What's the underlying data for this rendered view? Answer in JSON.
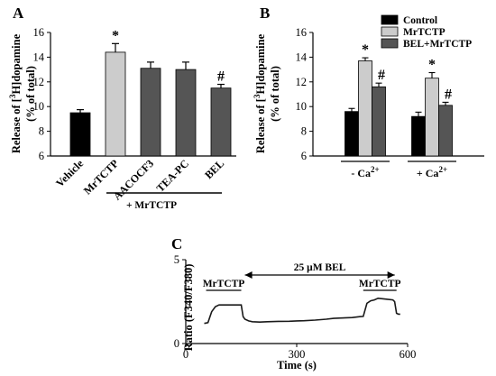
{
  "panels": {
    "a": "A",
    "b": "B",
    "c": "C"
  },
  "chart_data": [
    {
      "panel": "A",
      "type": "bar",
      "categories": [
        "Vehicle",
        "MrTCTP",
        "AACOCF3",
        "TEA-PC",
        "BEL"
      ],
      "values": [
        9.5,
        14.4,
        13.1,
        13.0,
        11.5
      ],
      "errors": [
        0.25,
        0.7,
        0.5,
        0.6,
        0.3
      ],
      "colors": [
        "#000000",
        "#cccccc",
        "#555555",
        "#555555",
        "#555555"
      ],
      "significance": [
        "",
        "*",
        "",
        "",
        "#"
      ],
      "ylabel": "Release of [³H]dopamine (% of total)",
      "ylabel_line1": "Release of [",
      "ylabel_sup": "3",
      "ylabel_line1_end": "H]dopamine",
      "ylabel_line2": "(% of total)",
      "ylim": [
        6,
        16
      ],
      "yticks": [
        6,
        8,
        10,
        12,
        14,
        16
      ],
      "group_label": "+ MrTCTP"
    },
    {
      "panel": "B",
      "type": "bar",
      "categories": [
        "- Ca²⁺",
        "+ Ca²⁺"
      ],
      "category_parts": [
        {
          "text": "- Ca",
          "sup": "2+"
        },
        {
          "text": "+ Ca",
          "sup": "2+"
        }
      ],
      "series": [
        {
          "name": "Control",
          "values": [
            9.6,
            9.2
          ],
          "errors": [
            0.25,
            0.35
          ],
          "color": "#000000",
          "significance": [
            "",
            ""
          ]
        },
        {
          "name": "MrTCTP",
          "values": [
            13.7,
            12.3
          ],
          "errors": [
            0.25,
            0.45
          ],
          "color": "#cccccc",
          "significance": [
            "*",
            "*"
          ]
        },
        {
          "name": "BEL+MrTCTP",
          "values": [
            11.6,
            10.1
          ],
          "errors": [
            0.3,
            0.25
          ],
          "color": "#555555",
          "significance": [
            "#",
            "#"
          ]
        }
      ],
      "ylabel_line1": "Release of [",
      "ylabel_sup": "3",
      "ylabel_line1_end": "H]dopamine",
      "ylabel_line2": "(% of total)",
      "ylim": [
        6,
        16
      ],
      "yticks": [
        6,
        8,
        10,
        12,
        14,
        16
      ],
      "legend_position": "top-right"
    },
    {
      "panel": "C",
      "type": "line",
      "xlabel": "Time (s)",
      "ylabel": "Ratio (F340/F380)",
      "xlim": [
        0,
        600
      ],
      "ylim": [
        0,
        5
      ],
      "xticks": [
        0,
        300,
        600
      ],
      "yticks": [
        0,
        5
      ],
      "x": [
        50,
        60,
        70,
        80,
        90,
        100,
        120,
        140,
        150,
        155,
        160,
        170,
        180,
        200,
        220,
        250,
        280,
        300,
        320,
        350,
        380,
        400,
        420,
        450,
        470,
        480,
        490,
        500,
        510,
        520,
        540,
        560,
        565,
        570,
        575,
        580
      ],
      "y": [
        1.2,
        1.25,
        1.9,
        2.2,
        2.3,
        2.3,
        2.3,
        2.3,
        2.3,
        1.6,
        1.45,
        1.35,
        1.3,
        1.28,
        1.3,
        1.32,
        1.33,
        1.35,
        1.36,
        1.4,
        1.45,
        1.5,
        1.52,
        1.55,
        1.6,
        1.62,
        2.4,
        2.55,
        2.6,
        2.7,
        2.65,
        2.6,
        2.5,
        1.8,
        1.75,
        1.75
      ],
      "annotations": {
        "mrtctp_left": "MrTCTP",
        "mrtctp_right": "MrTCTP",
        "bel": "25 μM BEL"
      },
      "mrtctp_left_range": [
        55,
        150
      ],
      "mrtctp_right_range": [
        480,
        570
      ],
      "bel_range": [
        160,
        565
      ]
    }
  ]
}
